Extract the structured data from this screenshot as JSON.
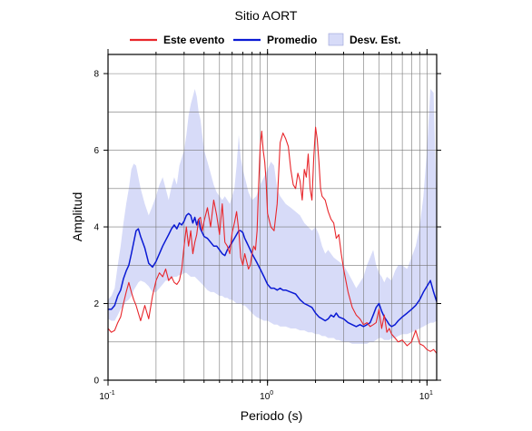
{
  "chart_data": {
    "type": "line",
    "title": "Sitio AORT",
    "xlabel": "Periodo (s)",
    "ylabel": "Amplitud",
    "x_scale": "log",
    "xlim": [
      0.1,
      11.5
    ],
    "ylim": [
      0,
      8.5
    ],
    "grid": true,
    "legend_placement": "top",
    "x_ticks": [
      {
        "value": 0.1,
        "base": "10",
        "exp": "-1"
      },
      {
        "value": 1,
        "base": "10",
        "exp": "0"
      },
      {
        "value": 10,
        "base": "10",
        "exp": "1"
      }
    ],
    "y_ticks": [
      {
        "value": 0,
        "label": "0"
      },
      {
        "value": 2,
        "label": "2"
      },
      {
        "value": 4,
        "label": "4"
      },
      {
        "value": 6,
        "label": "6"
      },
      {
        "value": 8,
        "label": "8"
      }
    ],
    "colors": {
      "event": "#e8262b",
      "mean": "#0a1ad4",
      "band": "#d7dbf8"
    },
    "legend": [
      {
        "key": "event",
        "label": "Este evento",
        "kind": "line"
      },
      {
        "key": "mean",
        "label": "Promedio",
        "kind": "line"
      },
      {
        "key": "band",
        "label": "Desv. Est.",
        "kind": "patch"
      }
    ],
    "series": [
      {
        "key": "event",
        "name": "Este evento",
        "x": [
          0.1,
          0.105,
          0.11,
          0.115,
          0.12,
          0.125,
          0.13,
          0.135,
          0.14,
          0.145,
          0.15,
          0.155,
          0.16,
          0.17,
          0.18,
          0.19,
          0.2,
          0.21,
          0.22,
          0.23,
          0.24,
          0.25,
          0.26,
          0.27,
          0.28,
          0.29,
          0.3,
          0.31,
          0.32,
          0.33,
          0.34,
          0.35,
          0.36,
          0.37,
          0.38,
          0.39,
          0.4,
          0.42,
          0.44,
          0.46,
          0.48,
          0.5,
          0.52,
          0.54,
          0.56,
          0.58,
          0.6,
          0.62,
          0.64,
          0.66,
          0.68,
          0.7,
          0.72,
          0.74,
          0.76,
          0.78,
          0.8,
          0.82,
          0.84,
          0.86,
          0.88,
          0.9,
          0.92,
          0.94,
          0.96,
          0.98,
          1.0,
          1.05,
          1.1,
          1.15,
          1.2,
          1.25,
          1.3,
          1.35,
          1.4,
          1.45,
          1.5,
          1.55,
          1.6,
          1.65,
          1.7,
          1.75,
          1.8,
          1.85,
          1.9,
          1.95,
          2.0,
          2.05,
          2.1,
          2.15,
          2.2,
          2.3,
          2.4,
          2.5,
          2.6,
          2.7,
          2.8,
          2.9,
          3.0,
          3.2,
          3.4,
          3.6,
          3.8,
          4.0,
          4.2,
          4.4,
          4.6,
          4.8,
          5.0,
          5.2,
          5.4,
          5.6,
          5.8,
          6.0,
          6.3,
          6.6,
          7.0,
          7.5,
          8.0,
          8.5,
          9.0,
          9.5,
          10.0,
          10.5,
          11.0,
          11.5
        ],
        "values": [
          1.35,
          1.25,
          1.3,
          1.5,
          1.65,
          2.0,
          2.3,
          2.55,
          2.3,
          2.1,
          1.95,
          1.75,
          1.55,
          1.95,
          1.6,
          2.2,
          2.6,
          2.8,
          2.7,
          2.9,
          2.6,
          2.7,
          2.55,
          2.5,
          2.6,
          2.9,
          3.5,
          4.0,
          3.5,
          3.9,
          3.3,
          3.6,
          3.8,
          4.2,
          4.25,
          3.9,
          4.15,
          4.5,
          4.0,
          4.7,
          4.3,
          3.8,
          4.6,
          3.6,
          3.5,
          3.3,
          3.85,
          4.1,
          4.4,
          3.9,
          3.2,
          3.0,
          3.3,
          3.1,
          2.9,
          3.0,
          3.3,
          3.5,
          3.4,
          3.9,
          5.1,
          6.1,
          6.5,
          6.0,
          5.7,
          5.2,
          4.35,
          4.0,
          3.9,
          4.6,
          6.2,
          6.45,
          6.3,
          6.1,
          5.5,
          5.1,
          5.0,
          5.4,
          5.2,
          4.7,
          5.5,
          5.3,
          5.9,
          5.0,
          4.7,
          5.8,
          6.6,
          6.3,
          5.7,
          5.0,
          4.8,
          4.7,
          4.4,
          4.2,
          4.1,
          3.7,
          3.8,
          3.3,
          2.9,
          2.3,
          1.9,
          1.7,
          1.6,
          1.45,
          1.5,
          1.4,
          1.45,
          1.5,
          1.85,
          1.35,
          1.7,
          1.25,
          1.35,
          1.2,
          1.1,
          1.0,
          1.05,
          0.9,
          1.0,
          1.3,
          0.95,
          0.9,
          0.8,
          0.75,
          0.8,
          0.7
        ]
      },
      {
        "key": "mean",
        "name": "Promedio",
        "x": [
          0.1,
          0.105,
          0.11,
          0.115,
          0.12,
          0.125,
          0.13,
          0.135,
          0.14,
          0.145,
          0.15,
          0.155,
          0.16,
          0.17,
          0.18,
          0.19,
          0.2,
          0.21,
          0.22,
          0.23,
          0.24,
          0.25,
          0.26,
          0.27,
          0.28,
          0.29,
          0.3,
          0.31,
          0.32,
          0.33,
          0.34,
          0.35,
          0.36,
          0.37,
          0.38,
          0.4,
          0.42,
          0.44,
          0.46,
          0.48,
          0.5,
          0.52,
          0.54,
          0.56,
          0.58,
          0.6,
          0.62,
          0.64,
          0.66,
          0.68,
          0.7,
          0.72,
          0.74,
          0.76,
          0.78,
          0.8,
          0.85,
          0.9,
          0.95,
          1.0,
          1.05,
          1.1,
          1.15,
          1.2,
          1.25,
          1.3,
          1.4,
          1.5,
          1.6,
          1.7,
          1.8,
          1.9,
          2.0,
          2.1,
          2.2,
          2.3,
          2.4,
          2.5,
          2.6,
          2.7,
          2.8,
          3.0,
          3.2,
          3.4,
          3.6,
          3.8,
          4.0,
          4.2,
          4.4,
          4.6,
          4.8,
          5.0,
          5.2,
          5.4,
          5.6,
          5.8,
          6.0,
          6.3,
          6.6,
          7.0,
          7.5,
          8.0,
          8.5,
          9.0,
          9.5,
          10.0,
          10.5,
          11.0,
          11.5
        ],
        "values": [
          1.85,
          1.85,
          1.95,
          2.2,
          2.35,
          2.65,
          2.85,
          3.0,
          3.3,
          3.6,
          3.9,
          3.95,
          3.75,
          3.45,
          3.05,
          2.95,
          3.1,
          3.3,
          3.5,
          3.65,
          3.8,
          3.95,
          4.05,
          3.95,
          4.1,
          4.05,
          4.15,
          4.3,
          4.35,
          4.3,
          4.1,
          4.25,
          4.05,
          4.2,
          3.95,
          3.75,
          3.7,
          3.6,
          3.5,
          3.5,
          3.4,
          3.3,
          3.25,
          3.4,
          3.5,
          3.6,
          3.7,
          3.8,
          3.9,
          3.9,
          3.85,
          3.7,
          3.6,
          3.5,
          3.4,
          3.3,
          3.1,
          2.9,
          2.7,
          2.5,
          2.4,
          2.4,
          2.35,
          2.4,
          2.35,
          2.35,
          2.3,
          2.25,
          2.1,
          2.0,
          1.95,
          1.9,
          1.75,
          1.65,
          1.6,
          1.55,
          1.6,
          1.7,
          1.65,
          1.75,
          1.65,
          1.6,
          1.5,
          1.45,
          1.4,
          1.45,
          1.4,
          1.45,
          1.5,
          1.7,
          1.9,
          2.0,
          1.8,
          1.65,
          1.55,
          1.45,
          1.4,
          1.45,
          1.55,
          1.65,
          1.75,
          1.85,
          1.95,
          2.1,
          2.3,
          2.45,
          2.6,
          2.3,
          2.05
        ]
      },
      {
        "key": "band",
        "name": "Desv. Est.",
        "x": [
          0.1,
          0.105,
          0.11,
          0.115,
          0.12,
          0.125,
          0.13,
          0.135,
          0.14,
          0.145,
          0.15,
          0.155,
          0.16,
          0.17,
          0.18,
          0.19,
          0.2,
          0.21,
          0.22,
          0.23,
          0.24,
          0.25,
          0.26,
          0.27,
          0.28,
          0.29,
          0.3,
          0.31,
          0.32,
          0.33,
          0.34,
          0.35,
          0.36,
          0.37,
          0.38,
          0.4,
          0.42,
          0.44,
          0.46,
          0.48,
          0.5,
          0.52,
          0.54,
          0.56,
          0.58,
          0.6,
          0.62,
          0.64,
          0.66,
          0.68,
          0.7,
          0.72,
          0.74,
          0.76,
          0.78,
          0.8,
          0.85,
          0.9,
          0.95,
          1.0,
          1.05,
          1.1,
          1.15,
          1.2,
          1.25,
          1.3,
          1.4,
          1.5,
          1.6,
          1.7,
          1.8,
          1.9,
          2.0,
          2.1,
          2.2,
          2.3,
          2.4,
          2.5,
          2.6,
          2.7,
          2.8,
          3.0,
          3.2,
          3.4,
          3.6,
          3.8,
          4.0,
          4.2,
          4.4,
          4.6,
          4.8,
          5.0,
          5.2,
          5.4,
          5.6,
          5.8,
          6.0,
          6.3,
          6.6,
          7.0,
          7.5,
          8.0,
          8.5,
          9.0,
          9.5,
          10.0,
          10.5,
          11.0,
          11.5
        ],
        "upper": [
          2.1,
          2.2,
          2.4,
          3.0,
          3.5,
          4.1,
          4.6,
          5.0,
          5.5,
          5.65,
          5.6,
          5.3,
          5.0,
          4.6,
          4.3,
          4.55,
          4.8,
          5.1,
          5.3,
          5.0,
          4.7,
          5.05,
          5.3,
          5.1,
          5.6,
          5.8,
          6.0,
          6.4,
          6.9,
          7.2,
          7.4,
          7.6,
          7.4,
          7.0,
          6.8,
          6.0,
          5.7,
          5.4,
          5.1,
          4.9,
          4.8,
          4.7,
          4.8,
          4.7,
          4.6,
          4.8,
          5.0,
          5.6,
          6.4,
          5.8,
          5.5,
          5.3,
          5.1,
          4.9,
          4.8,
          4.7,
          4.8,
          5.1,
          5.3,
          5.5,
          5.7,
          5.6,
          5.0,
          4.8,
          4.7,
          4.6,
          4.5,
          4.4,
          4.3,
          4.1,
          4.0,
          3.9,
          4.0,
          3.8,
          3.5,
          3.3,
          3.4,
          3.3,
          3.2,
          3.15,
          3.1,
          3.0,
          2.8,
          2.6,
          2.4,
          2.55,
          2.7,
          3.0,
          3.2,
          3.4,
          3.0,
          2.8,
          2.7,
          2.55,
          2.7,
          2.65,
          2.6,
          2.85,
          3.0,
          3.0,
          2.9,
          3.2,
          3.5,
          4.0,
          4.8,
          6.0,
          7.6,
          7.5,
          4.5
        ],
        "lower": [
          1.6,
          1.55,
          1.55,
          1.7,
          1.85,
          1.95,
          2.05,
          2.1,
          2.2,
          2.35,
          2.45,
          2.55,
          2.6,
          2.55,
          2.45,
          2.3,
          2.3,
          2.4,
          2.5,
          2.6,
          2.6,
          2.65,
          2.7,
          2.7,
          2.75,
          2.75,
          2.8,
          2.8,
          2.75,
          2.7,
          2.7,
          2.7,
          2.65,
          2.6,
          2.55,
          2.45,
          2.35,
          2.3,
          2.3,
          2.25,
          2.2,
          2.2,
          2.15,
          2.15,
          2.1,
          2.1,
          2.05,
          2.0,
          2.0,
          2.0,
          1.95,
          1.95,
          1.9,
          1.85,
          1.8,
          1.75,
          1.65,
          1.6,
          1.55,
          1.55,
          1.5,
          1.45,
          1.45,
          1.4,
          1.4,
          1.4,
          1.35,
          1.35,
          1.3,
          1.3,
          1.25,
          1.25,
          1.2,
          1.2,
          1.15,
          1.15,
          1.1,
          1.1,
          1.1,
          1.05,
          1.05,
          1.0,
          1.0,
          0.95,
          0.95,
          0.95,
          0.95,
          0.95,
          1.0,
          1.0,
          1.05,
          1.1,
          1.1,
          1.05,
          1.05,
          1.05,
          1.1,
          1.1,
          1.15,
          1.2,
          1.2,
          1.25,
          1.3,
          1.35,
          1.4,
          1.45,
          1.5,
          1.5,
          1.55
        ]
      }
    ]
  }
}
